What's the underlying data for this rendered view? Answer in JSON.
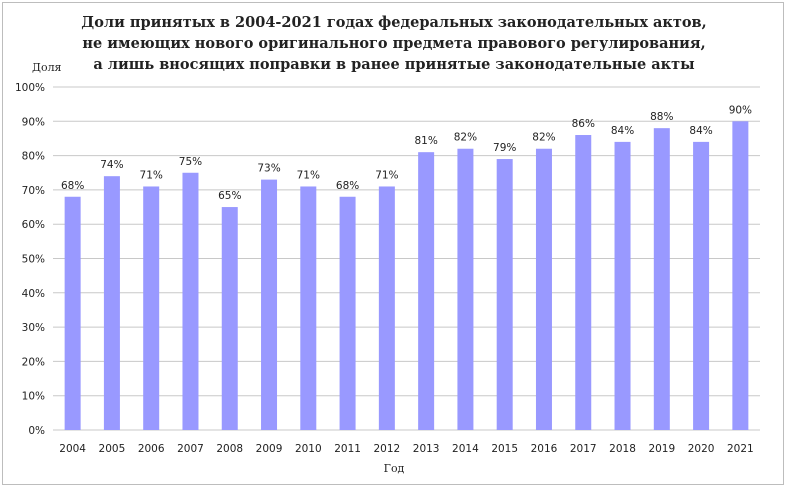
{
  "chart_data": {
    "type": "bar",
    "title": [
      "Доли принятых в 2004-2021 годах федеральных законодательных актов,",
      "не имеющих нового оригинального предмета правового регулирования,",
      "а лишь вносящих поправки в ранее принятые законодательные акты"
    ],
    "xlabel": "Год",
    "ylabel": "Доля",
    "categories": [
      "2004",
      "2005",
      "2006",
      "2007",
      "2008",
      "2009",
      "2010",
      "2011",
      "2012",
      "2013",
      "2014",
      "2015",
      "2016",
      "2017",
      "2018",
      "2019",
      "2020",
      "2021"
    ],
    "values": [
      68,
      74,
      71,
      75,
      65,
      73,
      71,
      68,
      71,
      81,
      82,
      79,
      82,
      86,
      84,
      88,
      84,
      90
    ],
    "ylim": [
      0,
      100
    ],
    "yticks": [
      0,
      10,
      20,
      30,
      40,
      50,
      60,
      70,
      80,
      90,
      100
    ],
    "grid": true,
    "data_labels": true,
    "bar_color": "#9999ff"
  }
}
